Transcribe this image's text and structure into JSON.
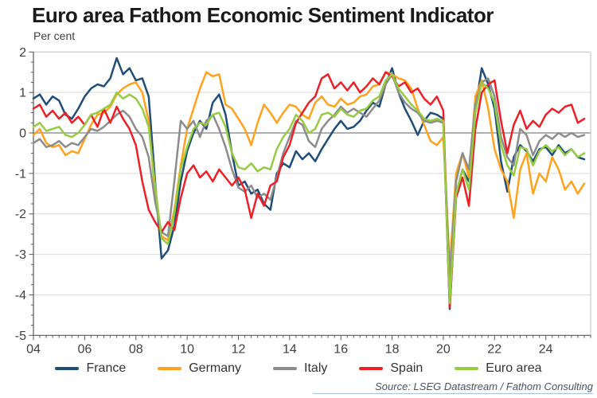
{
  "title": "Euro area Fathom Economic Sentiment Indicator",
  "subtitle": "Per cent",
  "source": "Source: LSEG Datastream / Fathom Consulting",
  "chart_data": {
    "type": "line",
    "title": "Euro area Fathom Economic Sentiment Indicator",
    "ylabel": "Per cent",
    "xlim": [
      2004,
      2025.75
    ],
    "ylim": [
      -5,
      2
    ],
    "yticks": [
      2,
      1,
      0,
      -1,
      -2,
      -3,
      -4,
      -5
    ],
    "xtick_years": [
      2004,
      2006,
      2008,
      2010,
      2012,
      2014,
      2016,
      2018,
      2020,
      2022,
      2024
    ],
    "xtick_labels": [
      "04",
      "06",
      "08",
      "10",
      "12",
      "14",
      "16",
      "18",
      "20",
      "22",
      "24"
    ],
    "minor_tick_step": 0.25,
    "grid": "horizontal",
    "zero_line": true,
    "legend_position": "bottom",
    "x_start": 2004.0,
    "x_step": 0.25,
    "series": [
      {
        "name": "France",
        "color": "#1F4E79",
        "values": [
          0.85,
          0.95,
          0.7,
          0.9,
          0.8,
          0.45,
          0.35,
          0.6,
          0.9,
          1.1,
          1.2,
          1.15,
          1.35,
          1.85,
          1.45,
          1.6,
          1.3,
          1.35,
          0.9,
          -1.2,
          -3.1,
          -2.9,
          -2.3,
          -1.2,
          -0.45,
          0.0,
          0.3,
          0.1,
          0.75,
          0.95,
          0.45,
          -0.5,
          -1.3,
          -1.2,
          -1.5,
          -1.4,
          -1.75,
          -1.9,
          -1.0,
          -0.75,
          -0.85,
          -0.45,
          -0.65,
          -0.5,
          -0.7,
          -0.4,
          -0.15,
          0.1,
          0.3,
          0.1,
          0.15,
          0.3,
          0.55,
          0.75,
          0.65,
          1.2,
          1.6,
          1.0,
          0.6,
          0.3,
          -0.05,
          0.3,
          0.5,
          0.45,
          0.35,
          -4.35,
          -1.5,
          -0.9,
          -1.2,
          0.6,
          1.6,
          1.2,
          0.6,
          -0.7,
          -1.45,
          -0.6,
          -0.3,
          -0.45,
          -0.7,
          -0.4,
          -0.35,
          -0.55,
          -0.3,
          -0.5,
          -0.4,
          -0.6,
          -0.65
        ]
      },
      {
        "name": "Germany",
        "color": "#FFA21D",
        "values": [
          -0.05,
          0.1,
          -0.25,
          -0.35,
          -0.3,
          -0.55,
          -0.45,
          -0.5,
          -0.15,
          0.2,
          0.45,
          0.5,
          0.65,
          0.95,
          1.1,
          1.2,
          1.25,
          1.0,
          0.3,
          -1.5,
          -2.55,
          -2.65,
          -1.9,
          -0.8,
          0.1,
          0.6,
          1.1,
          1.5,
          1.4,
          1.45,
          0.7,
          0.6,
          0.35,
          0.1,
          -0.3,
          0.25,
          0.7,
          0.5,
          0.25,
          0.5,
          0.7,
          0.65,
          0.45,
          0.35,
          0.75,
          0.9,
          0.7,
          0.65,
          0.85,
          0.7,
          0.75,
          0.9,
          0.95,
          1.15,
          1.2,
          1.5,
          1.45,
          1.35,
          1.3,
          1.1,
          0.6,
          0.2,
          -0.2,
          -0.3,
          -0.1,
          -3.3,
          -1.0,
          -0.5,
          -1.1,
          0.9,
          1.3,
          0.6,
          -0.4,
          -0.9,
          -1.2,
          -2.1,
          -0.9,
          -0.5,
          -1.5,
          -1.0,
          -1.2,
          -0.6,
          -0.9,
          -1.4,
          -1.2,
          -1.5,
          -1.25
        ]
      },
      {
        "name": "Italy",
        "color": "#8C8C8C",
        "values": [
          -0.25,
          -0.15,
          -0.35,
          -0.3,
          -0.2,
          -0.35,
          -0.25,
          -0.3,
          -0.1,
          0.1,
          0.05,
          0.15,
          0.3,
          0.45,
          0.55,
          0.4,
          0.1,
          -0.1,
          -0.6,
          -1.7,
          -2.45,
          -2.55,
          -1.2,
          0.3,
          0.1,
          0.3,
          -0.1,
          0.3,
          0.45,
          0.1,
          -0.35,
          -0.9,
          -1.35,
          -1.45,
          -1.3,
          -1.6,
          -1.5,
          -1.65,
          -1.1,
          -0.5,
          -0.1,
          0.3,
          0.2,
          -0.2,
          -0.35,
          0.1,
          0.3,
          0.45,
          0.65,
          0.5,
          0.6,
          0.5,
          0.4,
          0.6,
          0.8,
          1.2,
          1.45,
          1.0,
          0.75,
          0.6,
          0.5,
          0.3,
          0.25,
          0.3,
          0.25,
          -3.6,
          -1.2,
          -0.5,
          -0.9,
          0.7,
          1.25,
          1.35,
          0.9,
          -0.1,
          -0.6,
          -0.8,
          0.1,
          -0.05,
          -0.55,
          -0.2,
          -0.05,
          -0.15,
          0.0,
          -0.1,
          0.0,
          -0.1,
          -0.05
        ]
      },
      {
        "name": "Spain",
        "color": "#EB2127",
        "values": [
          0.6,
          0.7,
          0.4,
          0.55,
          0.35,
          0.5,
          0.25,
          0.4,
          0.2,
          0.45,
          0.15,
          0.6,
          0.25,
          0.65,
          0.35,
          0.1,
          -0.3,
          -1.2,
          -1.9,
          -2.2,
          -2.45,
          -2.2,
          -2.4,
          -1.6,
          -1.0,
          -0.8,
          -1.1,
          -0.95,
          -1.2,
          -0.9,
          -1.1,
          -1.3,
          -1.1,
          -1.4,
          -2.1,
          -1.5,
          -1.8,
          -1.3,
          -1.2,
          -0.6,
          -0.3,
          0.25,
          0.5,
          0.75,
          0.9,
          1.35,
          1.45,
          1.1,
          1.25,
          1.05,
          1.25,
          1.0,
          1.15,
          1.35,
          1.2,
          1.5,
          1.4,
          1.15,
          1.25,
          1.0,
          1.1,
          0.85,
          0.7,
          0.9,
          0.55,
          -4.3,
          -1.6,
          -1.1,
          -1.8,
          0.1,
          1.0,
          1.2,
          1.3,
          0.3,
          -0.5,
          0.2,
          0.55,
          0.1,
          0.3,
          0.15,
          0.45,
          0.6,
          0.5,
          0.65,
          0.7,
          0.25,
          0.35
        ]
      },
      {
        "name": "Euro area",
        "color": "#95CC41",
        "values": [
          0.15,
          0.25,
          0.05,
          0.1,
          0.15,
          -0.05,
          -0.1,
          0.0,
          0.2,
          0.45,
          0.5,
          0.6,
          0.7,
          1.0,
          0.85,
          0.95,
          0.85,
          0.6,
          0.15,
          -1.3,
          -2.6,
          -2.75,
          -2.0,
          -0.9,
          -0.35,
          0.1,
          0.25,
          0.2,
          0.45,
          0.5,
          0.15,
          -0.5,
          -0.85,
          -0.9,
          -0.75,
          -0.95,
          -0.85,
          -0.9,
          -0.4,
          -0.1,
          0.1,
          0.45,
          0.3,
          0.0,
          0.1,
          0.45,
          0.5,
          0.4,
          0.6,
          0.45,
          0.4,
          0.55,
          0.6,
          0.8,
          0.9,
          1.3,
          1.45,
          1.1,
          0.9,
          0.7,
          0.55,
          0.35,
          0.3,
          0.35,
          0.3,
          -4.2,
          -1.5,
          -0.9,
          -1.4,
          0.5,
          1.25,
          1.1,
          0.75,
          -0.3,
          -0.8,
          -1.05,
          -0.35,
          -0.4,
          -0.8,
          -0.45,
          -0.3,
          -0.45,
          -0.35,
          -0.55,
          -0.4,
          -0.6,
          -0.5
        ]
      }
    ],
    "colors": {
      "grid": "#D9D9D9",
      "zero_line": "#808080",
      "frame": "#BFBFBF",
      "axis": "#595959",
      "tick_label": "#404040"
    }
  }
}
